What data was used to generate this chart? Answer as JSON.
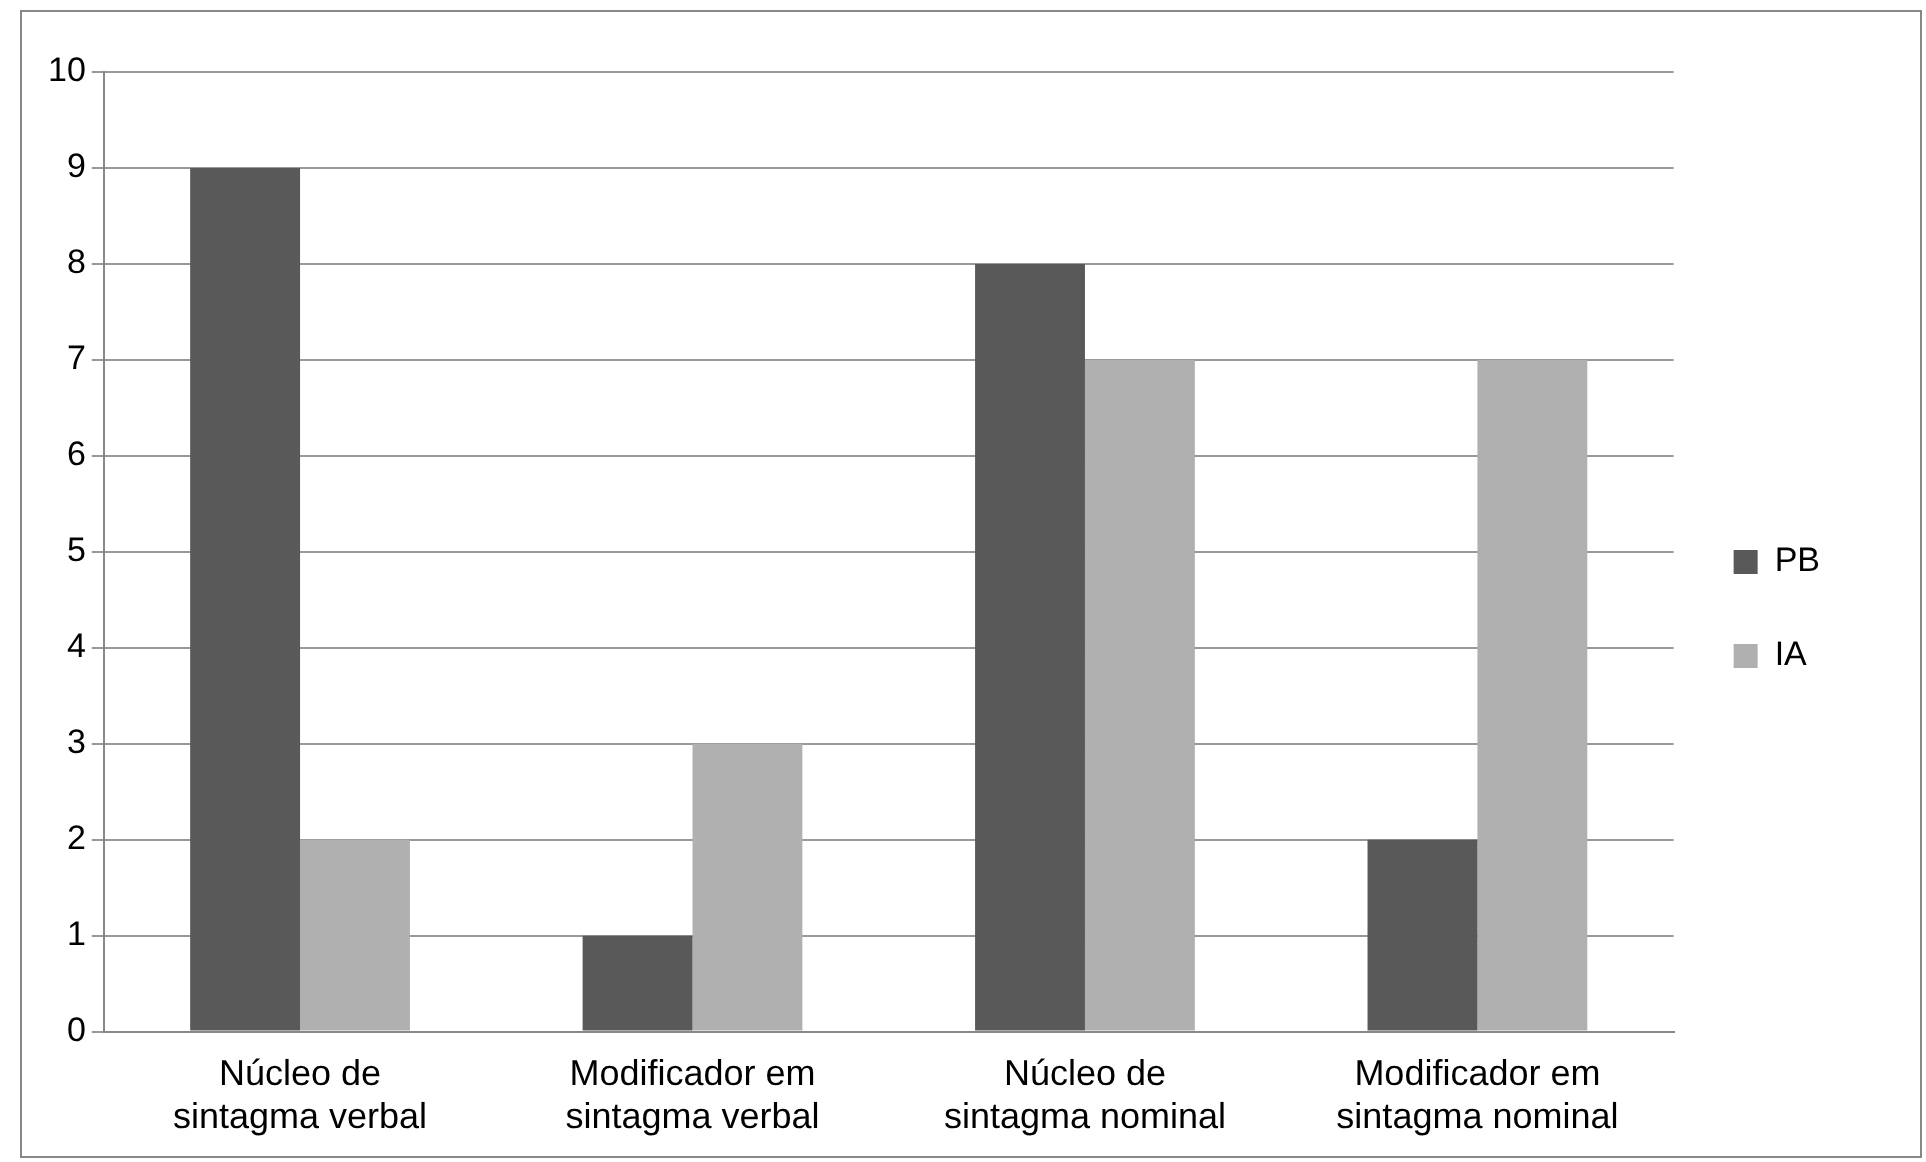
{
  "chart_data": {
    "type": "bar",
    "categories": [
      "Núcleo de sintagma verbal",
      "Modificador em sintagma verbal",
      "Núcleo de sintagma nominal",
      "Modificador em sintagma nominal"
    ],
    "series": [
      {
        "name": "PB",
        "color": "#595959",
        "values": [
          9,
          1,
          8,
          2
        ]
      },
      {
        "name": "IA",
        "color": "#b0b0b0",
        "values": [
          2,
          3,
          7,
          7
        ]
      }
    ],
    "ylim": [
      0,
      10
    ],
    "yticks": [
      0,
      1,
      2,
      3,
      4,
      5,
      6,
      7,
      8,
      9,
      10
    ],
    "grid": "y",
    "legend": "right"
  }
}
